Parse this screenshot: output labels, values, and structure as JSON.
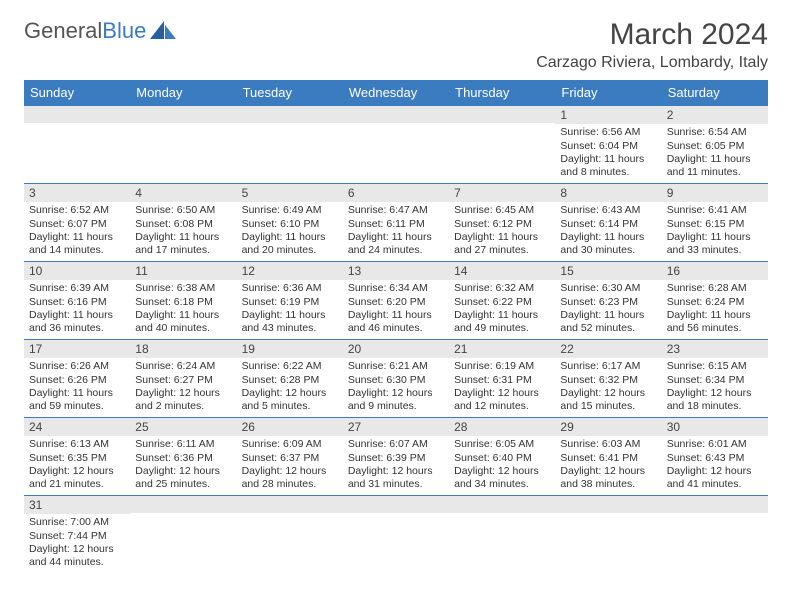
{
  "brand": {
    "name_part1": "General",
    "name_part2": "Blue"
  },
  "title": "March 2024",
  "location": "Carzago Riviera, Lombardy, Italy",
  "headers": [
    "Sunday",
    "Monday",
    "Tuesday",
    "Wednesday",
    "Thursday",
    "Friday",
    "Saturday"
  ],
  "colors": {
    "accent": "#3b7bbf",
    "daybar_bg": "#e8e8e8",
    "text": "#333333",
    "header_text": "#ffffff"
  },
  "grid": {
    "cols": 7,
    "rows": 6
  },
  "cells": [
    {
      "blank": true
    },
    {
      "blank": true
    },
    {
      "blank": true
    },
    {
      "blank": true
    },
    {
      "blank": true
    },
    {
      "day": "1",
      "sunrise": "Sunrise: 6:56 AM",
      "sunset": "Sunset: 6:04 PM",
      "daylight1": "Daylight: 11 hours",
      "daylight2": "and 8 minutes."
    },
    {
      "day": "2",
      "sunrise": "Sunrise: 6:54 AM",
      "sunset": "Sunset: 6:05 PM",
      "daylight1": "Daylight: 11 hours",
      "daylight2": "and 11 minutes."
    },
    {
      "day": "3",
      "sunrise": "Sunrise: 6:52 AM",
      "sunset": "Sunset: 6:07 PM",
      "daylight1": "Daylight: 11 hours",
      "daylight2": "and 14 minutes."
    },
    {
      "day": "4",
      "sunrise": "Sunrise: 6:50 AM",
      "sunset": "Sunset: 6:08 PM",
      "daylight1": "Daylight: 11 hours",
      "daylight2": "and 17 minutes."
    },
    {
      "day": "5",
      "sunrise": "Sunrise: 6:49 AM",
      "sunset": "Sunset: 6:10 PM",
      "daylight1": "Daylight: 11 hours",
      "daylight2": "and 20 minutes."
    },
    {
      "day": "6",
      "sunrise": "Sunrise: 6:47 AM",
      "sunset": "Sunset: 6:11 PM",
      "daylight1": "Daylight: 11 hours",
      "daylight2": "and 24 minutes."
    },
    {
      "day": "7",
      "sunrise": "Sunrise: 6:45 AM",
      "sunset": "Sunset: 6:12 PM",
      "daylight1": "Daylight: 11 hours",
      "daylight2": "and 27 minutes."
    },
    {
      "day": "8",
      "sunrise": "Sunrise: 6:43 AM",
      "sunset": "Sunset: 6:14 PM",
      "daylight1": "Daylight: 11 hours",
      "daylight2": "and 30 minutes."
    },
    {
      "day": "9",
      "sunrise": "Sunrise: 6:41 AM",
      "sunset": "Sunset: 6:15 PM",
      "daylight1": "Daylight: 11 hours",
      "daylight2": "and 33 minutes."
    },
    {
      "day": "10",
      "sunrise": "Sunrise: 6:39 AM",
      "sunset": "Sunset: 6:16 PM",
      "daylight1": "Daylight: 11 hours",
      "daylight2": "and 36 minutes."
    },
    {
      "day": "11",
      "sunrise": "Sunrise: 6:38 AM",
      "sunset": "Sunset: 6:18 PM",
      "daylight1": "Daylight: 11 hours",
      "daylight2": "and 40 minutes."
    },
    {
      "day": "12",
      "sunrise": "Sunrise: 6:36 AM",
      "sunset": "Sunset: 6:19 PM",
      "daylight1": "Daylight: 11 hours",
      "daylight2": "and 43 minutes."
    },
    {
      "day": "13",
      "sunrise": "Sunrise: 6:34 AM",
      "sunset": "Sunset: 6:20 PM",
      "daylight1": "Daylight: 11 hours",
      "daylight2": "and 46 minutes."
    },
    {
      "day": "14",
      "sunrise": "Sunrise: 6:32 AM",
      "sunset": "Sunset: 6:22 PM",
      "daylight1": "Daylight: 11 hours",
      "daylight2": "and 49 minutes."
    },
    {
      "day": "15",
      "sunrise": "Sunrise: 6:30 AM",
      "sunset": "Sunset: 6:23 PM",
      "daylight1": "Daylight: 11 hours",
      "daylight2": "and 52 minutes."
    },
    {
      "day": "16",
      "sunrise": "Sunrise: 6:28 AM",
      "sunset": "Sunset: 6:24 PM",
      "daylight1": "Daylight: 11 hours",
      "daylight2": "and 56 minutes."
    },
    {
      "day": "17",
      "sunrise": "Sunrise: 6:26 AM",
      "sunset": "Sunset: 6:26 PM",
      "daylight1": "Daylight: 11 hours",
      "daylight2": "and 59 minutes."
    },
    {
      "day": "18",
      "sunrise": "Sunrise: 6:24 AM",
      "sunset": "Sunset: 6:27 PM",
      "daylight1": "Daylight: 12 hours",
      "daylight2": "and 2 minutes."
    },
    {
      "day": "19",
      "sunrise": "Sunrise: 6:22 AM",
      "sunset": "Sunset: 6:28 PM",
      "daylight1": "Daylight: 12 hours",
      "daylight2": "and 5 minutes."
    },
    {
      "day": "20",
      "sunrise": "Sunrise: 6:21 AM",
      "sunset": "Sunset: 6:30 PM",
      "daylight1": "Daylight: 12 hours",
      "daylight2": "and 9 minutes."
    },
    {
      "day": "21",
      "sunrise": "Sunrise: 6:19 AM",
      "sunset": "Sunset: 6:31 PM",
      "daylight1": "Daylight: 12 hours",
      "daylight2": "and 12 minutes."
    },
    {
      "day": "22",
      "sunrise": "Sunrise: 6:17 AM",
      "sunset": "Sunset: 6:32 PM",
      "daylight1": "Daylight: 12 hours",
      "daylight2": "and 15 minutes."
    },
    {
      "day": "23",
      "sunrise": "Sunrise: 6:15 AM",
      "sunset": "Sunset: 6:34 PM",
      "daylight1": "Daylight: 12 hours",
      "daylight2": "and 18 minutes."
    },
    {
      "day": "24",
      "sunrise": "Sunrise: 6:13 AM",
      "sunset": "Sunset: 6:35 PM",
      "daylight1": "Daylight: 12 hours",
      "daylight2": "and 21 minutes."
    },
    {
      "day": "25",
      "sunrise": "Sunrise: 6:11 AM",
      "sunset": "Sunset: 6:36 PM",
      "daylight1": "Daylight: 12 hours",
      "daylight2": "and 25 minutes."
    },
    {
      "day": "26",
      "sunrise": "Sunrise: 6:09 AM",
      "sunset": "Sunset: 6:37 PM",
      "daylight1": "Daylight: 12 hours",
      "daylight2": "and 28 minutes."
    },
    {
      "day": "27",
      "sunrise": "Sunrise: 6:07 AM",
      "sunset": "Sunset: 6:39 PM",
      "daylight1": "Daylight: 12 hours",
      "daylight2": "and 31 minutes."
    },
    {
      "day": "28",
      "sunrise": "Sunrise: 6:05 AM",
      "sunset": "Sunset: 6:40 PM",
      "daylight1": "Daylight: 12 hours",
      "daylight2": "and 34 minutes."
    },
    {
      "day": "29",
      "sunrise": "Sunrise: 6:03 AM",
      "sunset": "Sunset: 6:41 PM",
      "daylight1": "Daylight: 12 hours",
      "daylight2": "and 38 minutes."
    },
    {
      "day": "30",
      "sunrise": "Sunrise: 6:01 AM",
      "sunset": "Sunset: 6:43 PM",
      "daylight1": "Daylight: 12 hours",
      "daylight2": "and 41 minutes."
    },
    {
      "day": "31",
      "sunrise": "Sunrise: 7:00 AM",
      "sunset": "Sunset: 7:44 PM",
      "daylight1": "Daylight: 12 hours",
      "daylight2": "and 44 minutes."
    },
    {
      "blank": true
    },
    {
      "blank": true
    },
    {
      "blank": true
    },
    {
      "blank": true
    },
    {
      "blank": true
    },
    {
      "blank": true
    }
  ]
}
